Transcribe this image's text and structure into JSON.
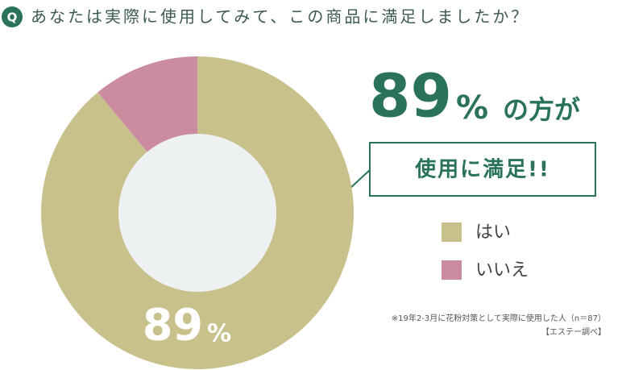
{
  "chart_data": {
    "type": "donut",
    "badge": "Q",
    "title": "あなたは実際に使用してみて、この商品に満足しましたか？",
    "categories": [
      "はい",
      "いいえ"
    ],
    "values": [
      89,
      11
    ],
    "colors": [
      "#c9c18c",
      "#cc8ca0"
    ],
    "unit": "%",
    "headline_value": "89",
    "headline_unit": "%",
    "headline_text": "の方が",
    "callout": "使用に満足!!",
    "notes": [
      "※19年2-3月に花粉対策として実際に使用した人（n＝87）",
      "【エステー調べ】"
    ]
  }
}
